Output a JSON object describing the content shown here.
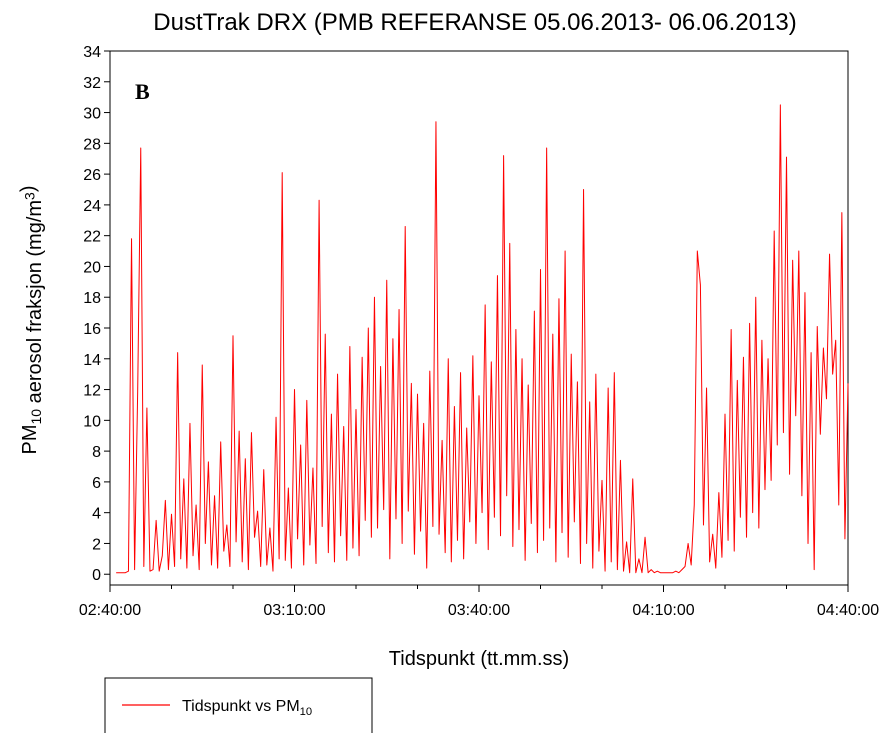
{
  "chart_data": {
    "type": "line",
    "title": "DustTrak DRX (PMB REFERANSE 05.06.2013- 06.06.2013)",
    "annotation": "B",
    "x_label": "Tidspunkt (tt.mm.ss)",
    "y_label": "PM10 aerosol fraksjon (mg/m3)",
    "xlim": [
      160,
      280
    ],
    "xticks": [
      {
        "value": 160,
        "label": "02:40:00"
      },
      {
        "value": 190,
        "label": "03:10:00"
      },
      {
        "value": 220,
        "label": "03:40:00"
      },
      {
        "value": 250,
        "label": "04:10:00"
      },
      {
        "value": 280,
        "label": "04:40:00"
      }
    ],
    "xminorticks": [
      170,
      180,
      200,
      210,
      230,
      240,
      260,
      270
    ],
    "ylim": [
      -0.7,
      34
    ],
    "yticks": [
      0,
      2,
      4,
      6,
      8,
      10,
      12,
      14,
      16,
      18,
      20,
      22,
      24,
      26,
      28,
      30,
      32,
      34
    ],
    "grid": false,
    "legend": "bottom-left",
    "x": [
      161,
      161.5,
      162,
      162.5,
      163,
      163.5,
      164,
      164.5,
      165,
      165.5,
      166,
      166.5,
      167,
      167.5,
      168,
      168.5,
      169,
      169.5,
      170,
      170.5,
      171,
      171.5,
      172,
      172.5,
      173,
      173.5,
      174,
      174.5,
      175,
      175.5,
      176,
      176.5,
      177,
      177.5,
      178,
      178.5,
      179,
      179.5,
      180,
      180.5,
      181,
      181.5,
      182,
      182.5,
      183,
      183.5,
      184,
      184.5,
      185,
      185.5,
      186,
      186.5,
      187,
      187.5,
      188,
      188.5,
      189,
      189.5,
      190,
      190.5,
      191,
      191.5,
      192,
      192.5,
      193,
      193.5,
      194,
      194.5,
      195,
      195.5,
      196,
      196.5,
      197,
      197.5,
      198,
      198.5,
      199,
      199.5,
      200,
      200.5,
      201,
      201.5,
      202,
      202.5,
      203,
      203.5,
      204,
      204.5,
      205,
      205.5,
      206,
      206.5,
      207,
      207.5,
      208,
      208.5,
      209,
      209.5,
      210,
      210.5,
      211,
      211.5,
      212,
      212.5,
      213,
      213.5,
      214,
      214.5,
      215,
      215.5,
      216,
      216.5,
      217,
      217.5,
      218,
      218.5,
      219,
      219.5,
      220,
      220.5,
      221,
      221.5,
      222,
      222.5,
      223,
      223.5,
      224,
      224.5,
      225,
      225.5,
      226,
      226.5,
      227,
      227.5,
      228,
      228.5,
      229,
      229.5,
      230,
      230.5,
      231,
      231.5,
      232,
      232.5,
      233,
      233.5,
      234,
      234.5,
      235,
      235.5,
      236,
      236.5,
      237,
      237.5,
      238,
      238.5,
      239,
      239.5,
      240,
      240.5,
      241,
      241.5,
      242,
      242.5,
      243,
      243.5,
      244,
      244.5,
      245,
      245.5,
      246,
      246.5,
      247,
      247.5,
      248,
      248.5,
      249,
      249.5,
      250,
      250.5,
      251,
      251.5,
      252,
      252.5,
      253,
      253.5,
      254,
      254.5,
      255,
      255.5,
      256,
      256.5,
      257,
      257.5,
      258,
      258.5,
      259,
      259.5,
      260,
      260.5,
      261,
      261.5,
      262,
      262.5,
      263,
      263.5,
      264,
      264.5,
      265,
      265.5,
      266,
      266.5,
      267,
      267.5,
      268,
      268.5,
      269,
      269.5,
      270,
      270.5,
      271,
      271.5,
      272,
      272.5,
      273,
      273.5,
      274,
      274.5,
      275,
      275.5,
      276,
      276.5,
      277,
      277.5,
      278,
      278.5,
      279,
      279.5,
      280
    ],
    "series": [
      {
        "name": "Tidspunkt vs PM10",
        "color": "#ff0000",
        "values": [
          0.1,
          0.1,
          0.1,
          0.1,
          0.2,
          21.8,
          0.3,
          11.9,
          27.7,
          0.5,
          10.8,
          0.2,
          0.3,
          3.5,
          0.2,
          1.2,
          4.8,
          0.3,
          3.9,
          0.5,
          14.4,
          1.0,
          6.2,
          0.4,
          9.8,
          1.2,
          4.5,
          0.3,
          13.6,
          2.0,
          7.3,
          0.6,
          5.1,
          0.4,
          8.6,
          1.5,
          3.2,
          0.5,
          15.5,
          2.1,
          9.3,
          0.8,
          7.5,
          0.3,
          9.2,
          2.4,
          4.1,
          0.5,
          6.8,
          0.6,
          3.0,
          0.2,
          10.2,
          1.0,
          26.1,
          0.9,
          5.6,
          0.4,
          12.0,
          2.3,
          8.4,
          0.6,
          11.3,
          1.9,
          6.9,
          0.7,
          24.3,
          3.1,
          15.6,
          1.4,
          10.4,
          0.8,
          13.0,
          2.5,
          9.6,
          0.9,
          14.8,
          1.7,
          10.7,
          1.2,
          14.1,
          3.5,
          16.0,
          2.4,
          18.0,
          3.0,
          13.5,
          4.2,
          19.1,
          1.0,
          15.3,
          3.6,
          17.2,
          2.0,
          22.6,
          4.1,
          12.4,
          1.3,
          11.7,
          2.8,
          9.8,
          0.4,
          13.2,
          3.1,
          29.4,
          2.6,
          8.7,
          1.4,
          14.0,
          0.8,
          10.9,
          2.2,
          13.1,
          1.0,
          9.5,
          3.4,
          14.2,
          2.0,
          11.6,
          4.0,
          17.5,
          1.6,
          13.8,
          3.7,
          19.4,
          2.5,
          27.2,
          5.1,
          21.5,
          1.8,
          15.9,
          2.9,
          14.0,
          0.9,
          12.3,
          3.3,
          17.1,
          1.4,
          19.8,
          2.2,
          27.7,
          3.0,
          15.6,
          0.8,
          17.9,
          2.7,
          21.0,
          1.1,
          14.3,
          3.4,
          12.5,
          0.7,
          25.0,
          2.0,
          11.2,
          0.4,
          13.0,
          1.5,
          6.1,
          0.2,
          12.1,
          0.8,
          13.1,
          0.3,
          7.4,
          0.2,
          2.1,
          0.1,
          6.2,
          0.1,
          1.0,
          0.1,
          2.4,
          0.1,
          0.3,
          0.1,
          0.2,
          0.1,
          0.1,
          0.1,
          0.1,
          0.1,
          0.2,
          0.1,
          0.3,
          0.5,
          2.0,
          0.6,
          4.5,
          21.0,
          18.8,
          3.2,
          12.1,
          0.8,
          2.6,
          0.4,
          5.3,
          1.1,
          10.4,
          2.2,
          15.9,
          1.5,
          12.6,
          3.7,
          14.1,
          2.4,
          16.3,
          4.0,
          18.0,
          3.0,
          15.2,
          5.5,
          14.0,
          6.1,
          22.3,
          8.4,
          30.5,
          9.2,
          27.1,
          6.5,
          20.4,
          10.3,
          21.0,
          5.1,
          18.3,
          2.0,
          14.4,
          0.3,
          16.1,
          9.1,
          14.7,
          11.4,
          20.8,
          13.0,
          15.2,
          4.5,
          23.5,
          2.3,
          12.4
        ]
      }
    ]
  }
}
